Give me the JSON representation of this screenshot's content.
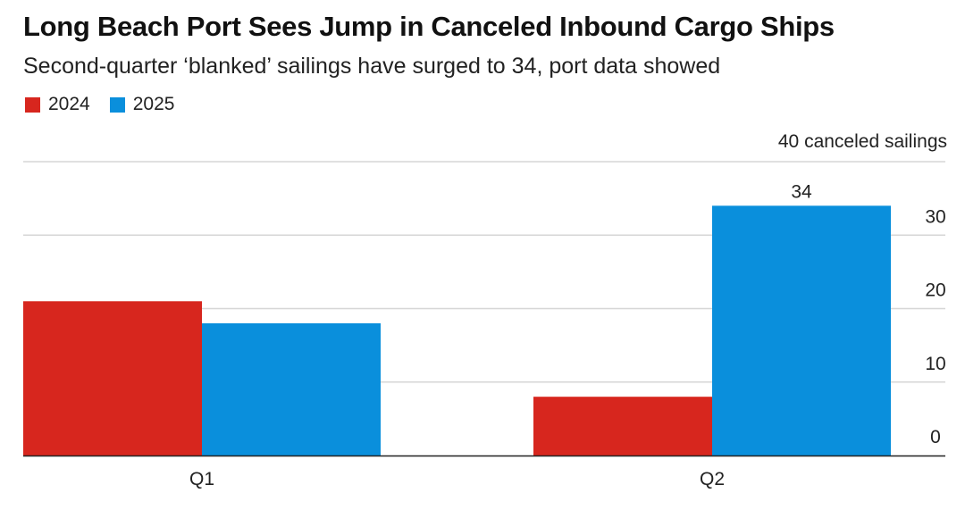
{
  "chart_data": {
    "type": "bar",
    "title": "Long Beach Port Sees Jump in Canceled Inbound Cargo Ships",
    "subtitle": "Second-quarter ‘blanked’ sailings have surged to 34, port data showed",
    "categories": [
      "Q1",
      "Q2"
    ],
    "series": [
      {
        "name": "2024",
        "color": "#d7261e",
        "values": [
          21,
          8
        ]
      },
      {
        "name": "2025",
        "color": "#0a8fdc",
        "values": [
          18,
          34
        ]
      }
    ],
    "data_labels": [
      {
        "category": "Q2",
        "series": "2025",
        "text": "34"
      }
    ],
    "y_unit_label": "40 canceled sailings",
    "y_ticks": [
      "0",
      "10",
      "20",
      "30"
    ],
    "ylim": [
      0,
      40
    ],
    "grid": true,
    "legend": "top-left",
    "y_axis_side": "right",
    "xlabel": "",
    "ylabel": ""
  }
}
